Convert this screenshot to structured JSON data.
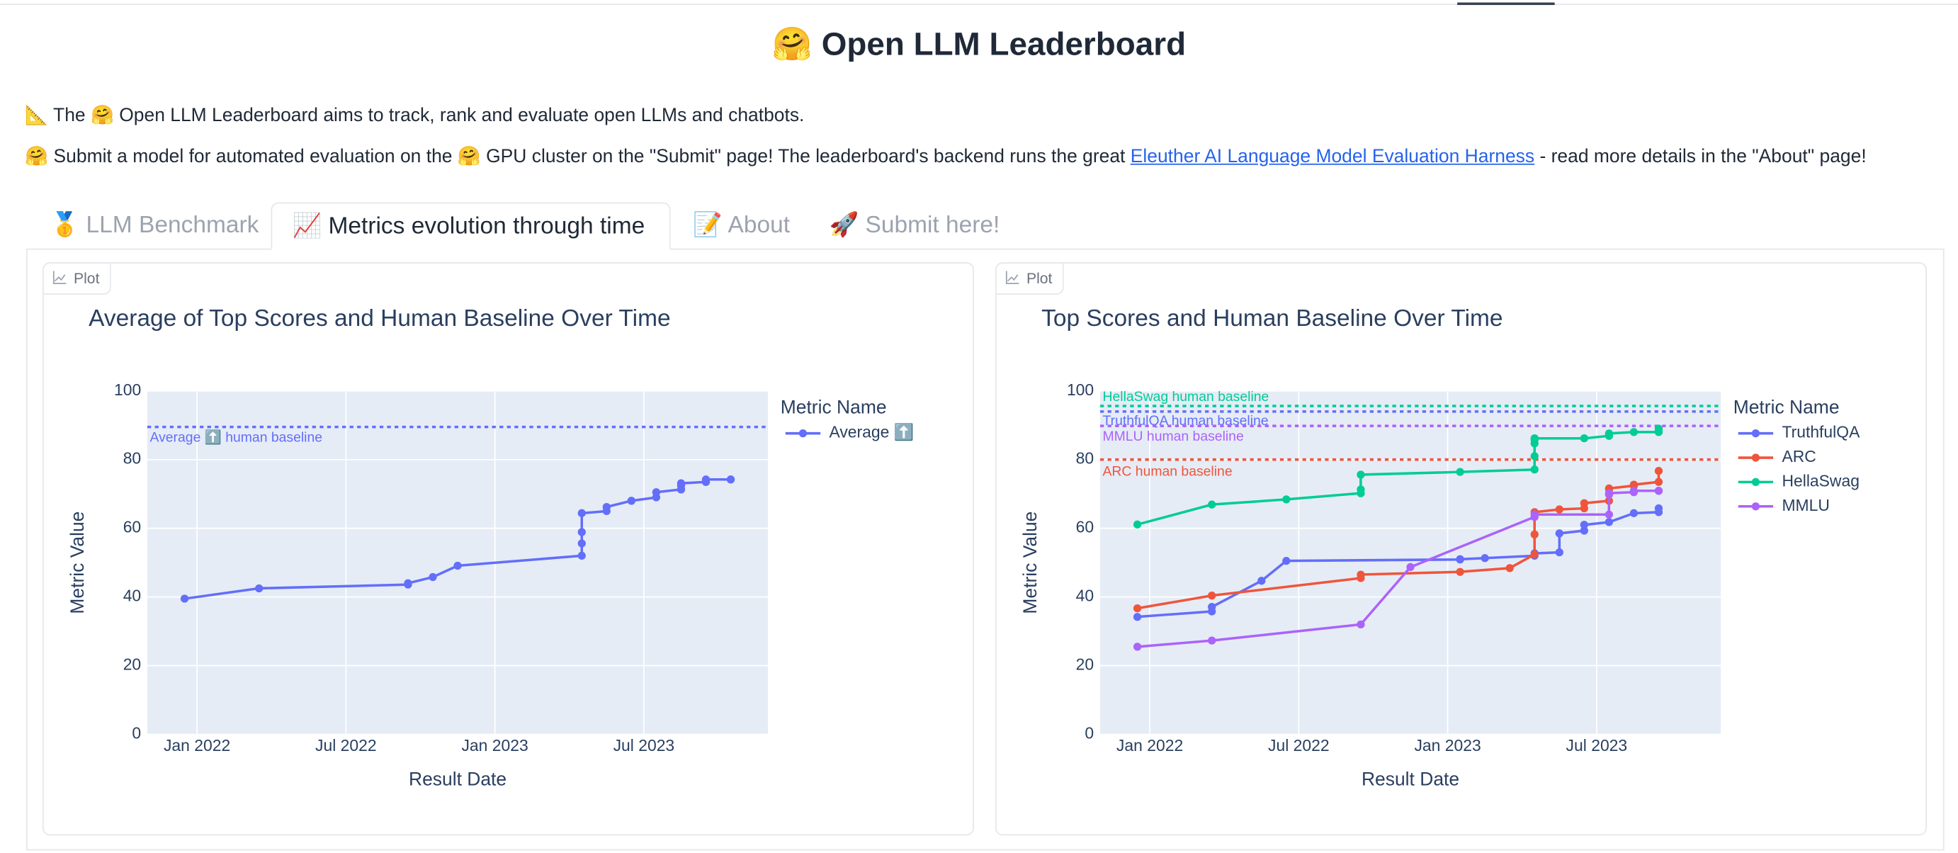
{
  "header": {
    "title": "🤗 Open LLM Leaderboard",
    "intro": "📐 The 🤗 Open LLM Leaderboard aims to track, rank and evaluate open LLMs and chatbots.",
    "submit_text_1": "🤗 Submit a model for automated evaluation on the 🤗 GPU cluster on the \"Submit\" page! The leaderboard's backend runs the great ",
    "link_text": "Eleuther AI Language Model Evaluation Harness",
    "submit_text_2": " - read more details in the \"About\" page!"
  },
  "tabs": [
    "🥇 LLM Benchmark",
    "📈 Metrics evolution through time",
    "📝 About",
    "🚀 Submit here!"
  ],
  "panels": [
    "Plot",
    "Plot"
  ],
  "chart_data": [
    {
      "type": "line",
      "title": "Average of Top Scores and Human Baseline Over Time",
      "x_label": "Result Date",
      "y_label": "Metric Value",
      "legend_title": "Metric Name",
      "xlim": [
        "2021-11",
        "2023-12"
      ],
      "ylim": [
        0,
        100
      ],
      "xticks": [
        {
          "value": "2022-01",
          "label": "Jan 2022"
        },
        {
          "value": "2022-07",
          "label": "Jul 2022"
        },
        {
          "value": "2023-01",
          "label": "Jan 2023"
        },
        {
          "value": "2023-07",
          "label": "Jul 2023"
        }
      ],
      "yticks": [
        0,
        20,
        40,
        60,
        80,
        100
      ],
      "grid": true,
      "baselines": [
        {
          "label": "Average ⬆️ human baseline",
          "value": 89.5,
          "color": "#636efa"
        }
      ],
      "series": [
        {
          "name": "Average ⬆️",
          "color": "#636efa",
          "x": [
            "2021-12",
            "2022-03",
            "2022-09",
            "2022-09",
            "2022-10",
            "2022-11",
            "2023-04",
            "2023-04",
            "2023-04",
            "2023-04",
            "2023-05",
            "2023-05",
            "2023-06",
            "2023-06",
            "2023-07",
            "2023-07",
            "2023-08",
            "2023-08",
            "2023-08",
            "2023-08",
            "2023-09",
            "2023-09",
            "2023-09",
            "2023-10",
            "2023-10"
          ],
          "values": [
            39.5,
            42.5,
            43.6,
            44,
            45.8,
            49.1,
            52,
            55.6,
            58.9,
            64.4,
            65,
            66.2,
            68,
            68,
            69,
            70.5,
            71.3,
            71.3,
            72.4,
            73.1,
            73.5,
            73.5,
            74.2,
            74.2,
            74.2
          ]
        }
      ]
    },
    {
      "type": "line",
      "title": "Top Scores and Human Baseline Over Time",
      "x_label": "Result Date",
      "y_label": "Metric Value",
      "legend_title": "Metric Name",
      "xlim": [
        "2021-11",
        "2023-12"
      ],
      "ylim": [
        0,
        100
      ],
      "xticks": [
        {
          "value": "2022-01",
          "label": "Jan 2022"
        },
        {
          "value": "2022-07",
          "label": "Jul 2022"
        },
        {
          "value": "2023-01",
          "label": "Jan 2023"
        },
        {
          "value": "2023-07",
          "label": "Jul 2023"
        }
      ],
      "yticks": [
        0,
        20,
        40,
        60,
        80,
        100
      ],
      "grid": true,
      "baselines": [
        {
          "label": "HellaSwag human baseline",
          "value": 95.6,
          "color": "#00cc96"
        },
        {
          "label": "TruthfulQA human baseline",
          "value": 94,
          "color": "#636efa"
        },
        {
          "label": "MMLU human baseline",
          "value": 89.8,
          "color": "#ab63fa"
        },
        {
          "label": "ARC human baseline",
          "value": 80,
          "color": "#ef553b"
        }
      ],
      "series": [
        {
          "name": "TruthfulQA",
          "color": "#636efa",
          "x": [
            "2021-12",
            "2022-03",
            "2022-03",
            "2022-05",
            "2022-06",
            "2023-01",
            "2023-01",
            "2023-02",
            "2023-04",
            "2023-04",
            "2023-05",
            "2023-05",
            "2023-06",
            "2023-06",
            "2023-07",
            "2023-08",
            "2023-09",
            "2023-09"
          ],
          "values": [
            34.2,
            35.8,
            37.1,
            44.7,
            50.5,
            50.9,
            51,
            51.3,
            52,
            52.7,
            53,
            58.5,
            59.3,
            61,
            61.8,
            64.4,
            64.7,
            65.8
          ]
        },
        {
          "name": "ARC",
          "color": "#ef553b",
          "x": [
            "2021-12",
            "2022-03",
            "2022-09",
            "2022-09",
            "2023-01",
            "2023-03",
            "2023-04",
            "2023-04",
            "2023-04",
            "2023-05",
            "2023-06",
            "2023-06",
            "2023-07",
            "2023-07",
            "2023-07",
            "2023-08",
            "2023-08",
            "2023-08",
            "2023-09",
            "2023-09"
          ],
          "values": [
            36.7,
            40.4,
            45.5,
            46.5,
            47.3,
            48.4,
            52.4,
            58.2,
            64.7,
            65.5,
            65.8,
            67.3,
            68,
            71.3,
            71.6,
            72.4,
            72.4,
            72.7,
            73.5,
            76.7
          ]
        },
        {
          "name": "HellaSwag",
          "color": "#00cc96",
          "x": [
            "2021-12",
            "2022-03",
            "2022-06",
            "2022-09",
            "2022-09",
            "2022-09",
            "2023-01",
            "2023-04",
            "2023-04",
            "2023-04",
            "2023-04",
            "2023-04",
            "2023-06",
            "2023-07",
            "2023-07",
            "2023-07",
            "2023-08",
            "2023-09",
            "2023-09",
            "2023-09"
          ],
          "values": [
            61.1,
            66.9,
            68.4,
            70.2,
            71.3,
            75.6,
            76.4,
            77.1,
            81,
            84.7,
            85.8,
            86.2,
            86.2,
            86.9,
            87.3,
            87.6,
            88,
            88,
            88.4,
            89
          ]
        },
        {
          "name": "MMLU",
          "color": "#ab63fa",
          "x": [
            "2021-12",
            "2022-03",
            "2022-09",
            "2022-11",
            "2023-04",
            "2023-04",
            "2023-07",
            "2023-07",
            "2023-07",
            "2023-08",
            "2023-08",
            "2023-09",
            "2023-09",
            "2023-09"
          ],
          "values": [
            25.5,
            27.3,
            32,
            48.7,
            63.3,
            64,
            64,
            69.8,
            70.2,
            70.5,
            70.9,
            70.9,
            70.9,
            70.9
          ]
        }
      ]
    }
  ]
}
